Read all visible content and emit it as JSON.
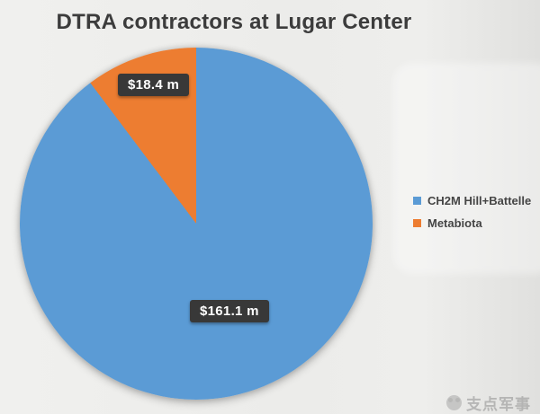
{
  "chart_data": {
    "type": "pie",
    "title": "DTRA contractors at Lugar Center",
    "slices": [
      {
        "label": "CH2M Hill+Battelle",
        "value": 161.1,
        "display": "$161.1 m",
        "color": "#5B9BD5"
      },
      {
        "label": "Metabiota",
        "value": 18.4,
        "display": "$18.4 m",
        "color": "#ED7D31"
      }
    ],
    "start_angle_deg": 0,
    "direction": "clockwise",
    "legend_position": "right",
    "data_label_style": {
      "background": "#383838",
      "text_color": "#FFFFFF"
    }
  },
  "watermark": {
    "text": "支点军事",
    "logo": "panda-logo"
  }
}
